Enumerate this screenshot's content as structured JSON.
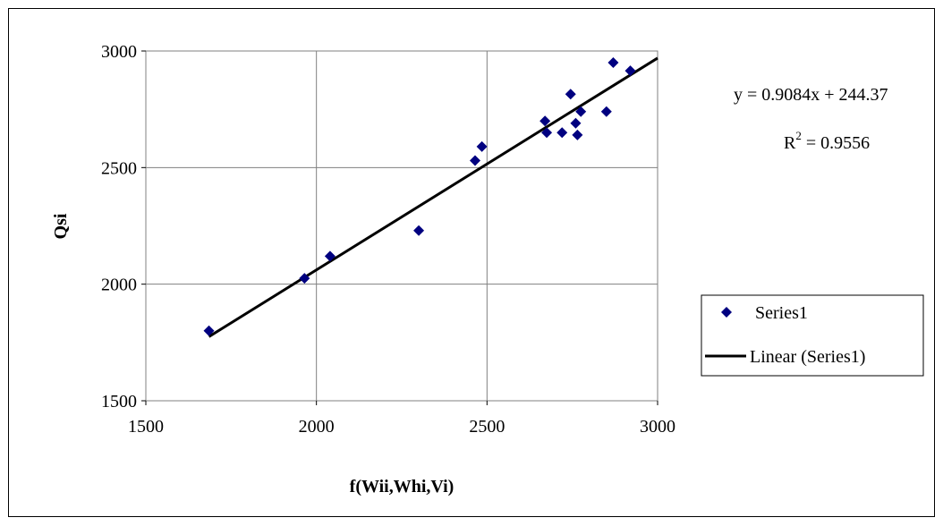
{
  "chart_data": {
    "type": "scatter",
    "xlabel": "f(Wii,Whi,Vi)",
    "ylabel": "Qsi",
    "xlim": [
      1500,
      3000
    ],
    "ylim": [
      1500,
      3000
    ],
    "x_ticks": [
      "1500",
      "2000",
      "2500",
      "3000"
    ],
    "y_ticks": [
      "1500",
      "2000",
      "2500",
      "3000"
    ],
    "grid": true,
    "legend_position": "right",
    "series": [
      {
        "name": "Series1",
        "marker": "diamond",
        "color": "#000080",
        "points": [
          {
            "x": 1685,
            "y": 1800
          },
          {
            "x": 1965,
            "y": 2025
          },
          {
            "x": 2040,
            "y": 2120
          },
          {
            "x": 2300,
            "y": 2230
          },
          {
            "x": 2465,
            "y": 2530
          },
          {
            "x": 2485,
            "y": 2590
          },
          {
            "x": 2670,
            "y": 2700
          },
          {
            "x": 2675,
            "y": 2650
          },
          {
            "x": 2720,
            "y": 2650
          },
          {
            "x": 2745,
            "y": 2815
          },
          {
            "x": 2760,
            "y": 2690
          },
          {
            "x": 2765,
            "y": 2640
          },
          {
            "x": 2775,
            "y": 2740
          },
          {
            "x": 2850,
            "y": 2740
          },
          {
            "x": 2870,
            "y": 2950
          },
          {
            "x": 2920,
            "y": 2915
          }
        ]
      }
    ],
    "trendline": {
      "name": "Linear (Series1)",
      "slope": 0.9084,
      "intercept": 244.37,
      "x_start": 1685,
      "x_end": 3000,
      "color": "#000000"
    },
    "annotations": {
      "equation": "y = 0.9084x + 244.37",
      "r2_prefix": "R",
      "r2_sup": "2",
      "r2_suffix": " = 0.9556"
    }
  }
}
